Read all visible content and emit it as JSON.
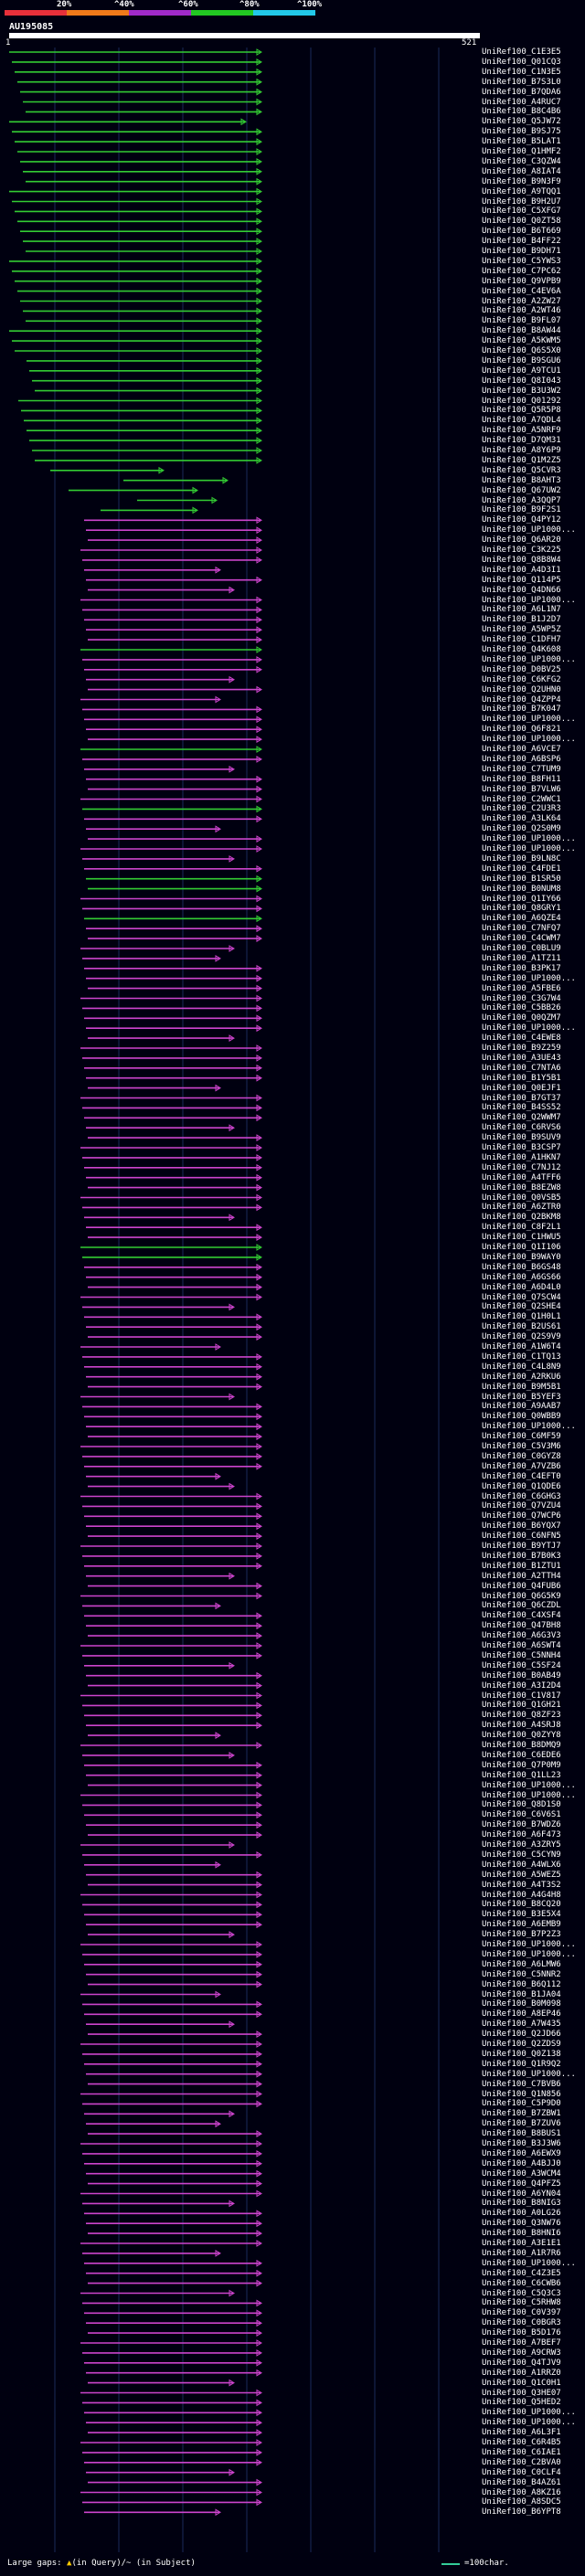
{
  "title": "AU195085",
  "query_start": "1",
  "query_end": "521",
  "percent_ticks": [
    "20%",
    "^40%",
    "^60%",
    "^80%",
    "^100%"
  ],
  "identity_colors": {
    "band1": "#e8303a",
    "band2": "#f07a1a",
    "band3": "#a02ac8",
    "band4": "#22c822",
    "band5": "#22c8e8",
    "green_hit": "#33cc33",
    "magenta_hit": "#cc44cc"
  },
  "hits": [
    "UniRef100_C1E3E5",
    "UniRef100_Q01CQ3",
    "UniRef100_C1N3E5",
    "UniRef100_B7S3L0",
    "UniRef100_B7QDA6",
    "UniRef100_A4RUC7",
    "UniRef100_B8C4B6",
    "UniRef100_Q5JW72",
    "UniRef100_B9SJ75",
    "UniRef100_B5LAT1",
    "UniRef100_Q1HMF2",
    "UniRef100_C3QZW4",
    "UniRef100_A8IAT4",
    "UniRef100_B9N3F9",
    "UniRef100_A9TQQ1",
    "UniRef100_B9H2U7",
    "UniRef100_C5XFG7",
    "UniRef100_Q0ZT58",
    "UniRef100_B6T669",
    "UniRef100_B4FF22",
    "UniRef100_B9DH71",
    "UniRef100_C5YWS3",
    "UniRef100_C7PC62",
    "UniRef100_Q9VPB9",
    "UniRef100_C4EV6A",
    "UniRef100_A2ZW27",
    "UniRef100_A2WT46",
    "UniRef100_B9FL07",
    "UniRef100_B8AW44",
    "UniRef100_A5KWM5",
    "UniRef100_Q6S5X0",
    "UniRef100_B9SGU6",
    "UniRef100_A9TCU1",
    "UniRef100_Q8I043",
    "UniRef100_B3U3W2",
    "UniRef100_Q01292",
    "UniRef100_Q5R5P8",
    "UniRef100_A7QDL4",
    "UniRef100_A5NRF9",
    "UniRef100_D7QM31",
    "UniRef100_A8Y6P9",
    "UniRef100_Q1M2Z5",
    "UniRef100_Q5CVR3",
    "UniRef100_B8AHT3",
    "UniRef100_Q67UW2",
    "UniRef100_A3QQP7",
    "UniRef100_B9F2S1",
    "UniRef100_Q4PY12",
    "UniRef100_UP1000...",
    "UniRef100_Q6AR20",
    "UniRef100_C3K225",
    "UniRef100_Q8B8W4",
    "UniRef100_A4D3I1",
    "UniRef100_Q114P5",
    "UniRef100_Q4DN66",
    "UniRef100_UP1000...",
    "UniRef100_A6L1N7",
    "UniRef100_B1J2D7",
    "UniRef100_A5WP5Z",
    "UniRef100_C1DFH7",
    "UniRef100_Q4K608",
    "UniRef100_UP1000...",
    "UniRef100_D0BV25",
    "UniRef100_C6KFG2",
    "UniRef100_Q2UHN0",
    "UniRef100_Q4ZPP4",
    "UniRef100_B7K047",
    "UniRef100_UP1000...",
    "UniRef100_Q6F821",
    "UniRef100_UP1000...",
    "UniRef100_A6VCE7",
    "UniRef100_A6BSP6",
    "UniRef100_C7TUM9",
    "UniRef100_B8FH11",
    "UniRef100_B7VLW6",
    "UniRef100_C2WWC1",
    "UniRef100_C2U3R3",
    "UniRef100_A3LK64",
    "UniRef100_Q2S0M9",
    "UniRef100_UP1000...",
    "UniRef100_UP1000...",
    "UniRef100_B9LN8C",
    "UniRef100_C4FDE1",
    "UniRef100_B1SR50",
    "UniRef100_B0NUM8",
    "UniRef100_Q1IY66",
    "UniRef100_Q8GRY1",
    "UniRef100_A6QZE4",
    "UniRef100_C7NFQ7",
    "UniRef100_C4CWM7",
    "UniRef100_C0BLU9",
    "UniRef100_A1TZ11",
    "UniRef100_B3PK17",
    "UniRef100_UP1000...",
    "UniRef100_A5FBE6",
    "UniRef100_C3G7W4",
    "UniRef100_C5BB26",
    "UniRef100_Q0QZM7",
    "UniRef100_UP1000...",
    "UniRef100_C4EWE8",
    "UniRef100_B9Z259",
    "UniRef100_A3UE43",
    "UniRef100_C7NTA6",
    "UniRef100_B1Y5B1",
    "UniRef100_Q0EJF1",
    "UniRef100_B7GT37",
    "UniRef100_B4SS52",
    "UniRef100_Q2WWM7",
    "UniRef100_C6RVS6",
    "UniRef100_B9SUV9",
    "UniRef100_B3CSP7",
    "UniRef100_A1HKN7",
    "UniRef100_C7NJ12",
    "UniRef100_A4TFF6",
    "UniRef100_B8EZW8",
    "UniRef100_Q0VSB5",
    "UniRef100_A6ZTR0",
    "UniRef100_Q2BKM8",
    "UniRef100_C8F2L1",
    "UniRef100_C1HWU5",
    "UniRef100_Q1I106",
    "UniRef100_B9WAY0",
    "UniRef100_B6GS48",
    "UniRef100_A6GS66",
    "UniRef100_A6D4L0",
    "UniRef100_Q7SCW4",
    "UniRef100_Q2SHE4",
    "UniRef100_Q1H0L1",
    "UniRef100_B2US61",
    "UniRef100_Q2S9V9",
    "UniRef100_A1W6T4",
    "UniRef100_C1TQ13",
    "UniRef100_C4L8N9",
    "UniRef100_A2RKU6",
    "UniRef100_B9M5B1",
    "UniRef100_B5YEF3",
    "UniRef100_A9AAB7",
    "UniRef100_Q0WBB9",
    "UniRef100_UP1000...",
    "UniRef100_C6MF59",
    "UniRef100_C5V3M6",
    "UniRef100_C0GYZ8",
    "UniRef100_A7VZB6",
    "UniRef100_C4EFT0",
    "UniRef100_Q1QDE6",
    "UniRef100_C6GHG3",
    "UniRef100_Q7VZU4",
    "UniRef100_Q7WCP6",
    "UniRef100_B6YQX7",
    "UniRef100_C6NFN5",
    "UniRef100_B9YTJ7",
    "UniRef100_B7B0K3",
    "UniRef100_B1ZTU1",
    "UniRef100_A2TTH4",
    "UniRef100_Q4FUB6",
    "UniRef100_Q6G5K9",
    "UniRef100_Q6CZDL",
    "UniRef100_C4XSF4",
    "UniRef100_Q47BH8",
    "UniRef100_A6G3V3",
    "UniRef100_A6SWT4",
    "UniRef100_C5NNH4",
    "UniRef100_C5SF24",
    "UniRef100_B0AB49",
    "UniRef100_A3I2D4",
    "UniRef100_C1V817",
    "UniRef100_Q1GH21",
    "UniRef100_Q8ZF23",
    "UniRef100_A4SRJ8",
    "UniRef100_Q0ZYY8",
    "UniRef100_B8DMQ9",
    "UniRef100_C6EDE6",
    "UniRef100_Q7P0M9",
    "UniRef100_Q1LL23",
    "UniRef100_UP1000...",
    "UniRef100_UP1000...",
    "UniRef100_Q8D1S0",
    "UniRef100_C6V6S1",
    "UniRef100_B7WDZ6",
    "UniRef100_A6F473",
    "UniRef100_A3ZRY5",
    "UniRef100_C5CYN9",
    "UniRef100_A4WLX6",
    "UniRef100_A5WEZ5",
    "UniRef100_A4T3S2",
    "UniRef100_A4G4H8",
    "UniRef100_B8CQ20",
    "UniRef100_B3E5X4",
    "UniRef100_A6EMB9",
    "UniRef100_B7P2Z3",
    "UniRef100_UP1000...",
    "UniRef100_UP1000...",
    "UniRef100_A6LMW6",
    "UniRef100_C5NNR2",
    "UniRef100_B6Q112",
    "UniRef100_B1JA04",
    "UniRef100_B0M098",
    "UniRef100_A8EP46",
    "UniRef100_A7W435",
    "UniRef100_Q2JD66",
    "UniRef100_Q2ZDS9",
    "UniRef100_Q0Z138",
    "UniRef100_Q1R9Q2",
    "UniRef100_UP1000...",
    "UniRef100_C7BVB6",
    "UniRef100_Q1N856",
    "UniRef100_C5P9D0",
    "UniRef100_B7ZBW1",
    "UniRef100_B7ZUV6",
    "UniRef100_B8BUS1",
    "UniRef100_B3J3W6",
    "UniRef100_A6EWX9",
    "UniRef100_A4BJJ0",
    "UniRef100_A3WCM4",
    "UniRef100_Q4PFZ5",
    "UniRef100_A6YN04",
    "UniRef100_B8NIG3",
    "UniRef100_A0LG26",
    "UniRef100_Q3NW76",
    "UniRef100_B8HNI6",
    "UniRef100_A3E1E1",
    "UniRef100_A1R7R6",
    "UniRef100_UP1000...",
    "UniRef100_C4Z3E5",
    "UniRef100_C6CWB6",
    "UniRef100_C5Q3C3",
    "UniRef100_C5RHW8",
    "UniRef100_C0V397",
    "UniRef100_C0BGR3",
    "UniRef100_B5D176",
    "UniRef100_A7BEF7",
    "UniRef100_A9CRW3",
    "UniRef100_Q4TJV9",
    "UniRef100_A1RRZ0",
    "UniRef100_Q1C0H1",
    "UniRef100_Q3HE07",
    "UniRef100_Q5HED2",
    "UniRef100_UP1000...",
    "UniRef100_UP1000...",
    "UniRef100_A6L3F1",
    "UniRef100_C6R4B5",
    "UniRef100_C6IAE1",
    "UniRef100_C2BVA0",
    "UniRef100_C0CLF4",
    "UniRef100_B4AZ61",
    "UniRef100_A8KZ16",
    "UniRef100_A8SDC5",
    "UniRef100_B6YPT8"
  ],
  "footer": {
    "gaps_label": "Large gaps: ",
    "gaps_query": "(in Query)",
    "gaps_subject": "/~ (in Subject)",
    "scale_label": "=100char."
  }
}
